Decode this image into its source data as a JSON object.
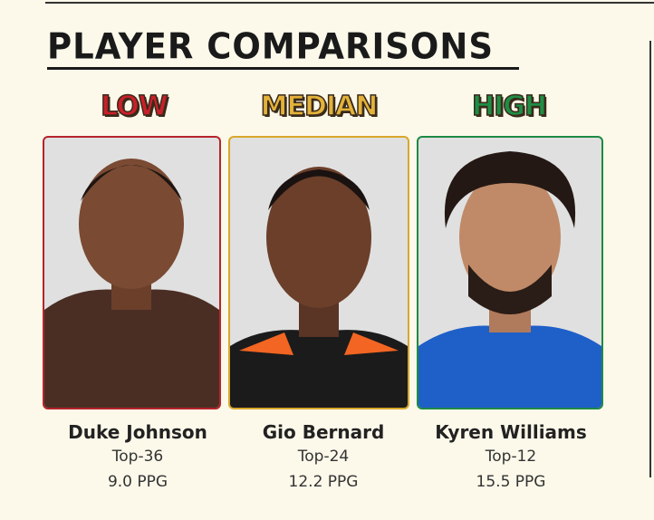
{
  "header": {
    "title": "PLAYER COMPARISONS"
  },
  "columns": [
    {
      "tier": "LOW",
      "name": "Duke Johnson",
      "rank": "Top-36",
      "ppg": "9.0 PPG"
    },
    {
      "tier": "MEDIAN",
      "name": "Gio Bernard",
      "rank": "Top-24",
      "ppg": "12.2 PPG"
    },
    {
      "tier": "HIGH",
      "name": "Kyren Williams",
      "rank": "Top-12",
      "ppg": "15.5 PPG"
    }
  ]
}
